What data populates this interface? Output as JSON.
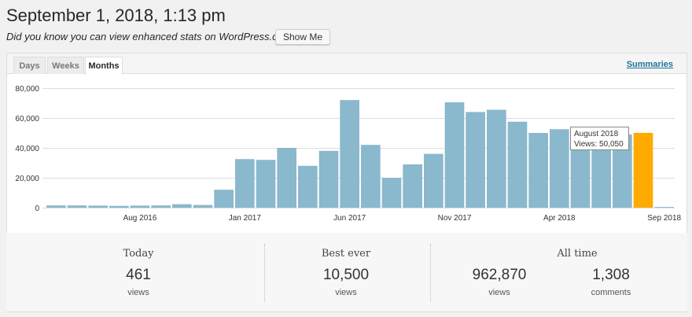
{
  "header": {
    "title": "September 1, 2018, 1:13 pm",
    "tip": "Did you know you can view enhanced stats on WordPress.com?",
    "show_me_label": "Show Me"
  },
  "tabs": [
    {
      "label": "Days",
      "active": false
    },
    {
      "label": "Weeks",
      "active": false
    },
    {
      "label": "Months",
      "active": true
    }
  ],
  "summaries_label": "Summaries",
  "tooltip": {
    "title": "August 2018",
    "text": "Views: 50,050"
  },
  "chart_data": {
    "type": "bar",
    "categories": [
      "Apr 2016",
      "May 2016",
      "Jun 2016",
      "Jul 2016",
      "Aug 2016",
      "Sep 2016",
      "Oct 2016",
      "Nov 2016",
      "Dec 2016",
      "Jan 2017",
      "Feb 2017",
      "Mar 2017",
      "Apr 2017",
      "May 2017",
      "Jun 2017",
      "Jul 2017",
      "Aug 2017",
      "Sep 2017",
      "Oct 2017",
      "Nov 2017",
      "Dec 2017",
      "Jan 2018",
      "Feb 2018",
      "Mar 2018",
      "Apr 2018",
      "May 2018",
      "Jun 2018",
      "Jul 2018",
      "Aug 2018",
      "Sep 2018"
    ],
    "values": [
      1500,
      1500,
      1400,
      1200,
      1400,
      1500,
      2300,
      1800,
      12000,
      32500,
      32000,
      40000,
      28000,
      38000,
      72000,
      42000,
      20000,
      29000,
      36000,
      70500,
      64000,
      65500,
      57500,
      50000,
      52500,
      40000,
      47000,
      49000,
      50050,
      500
    ],
    "highlight_index": 28,
    "x_tick_labels": [
      "Aug 2016",
      "Jan 2017",
      "Jun 2017",
      "Nov 2017",
      "Apr 2018",
      "Sep 2018"
    ],
    "x_tick_indices": [
      4,
      9,
      14,
      19,
      24,
      29
    ],
    "y_tick_labels": [
      "0",
      "20,000",
      "40,000",
      "60,000",
      "80,000"
    ],
    "y_tick_values": [
      0,
      20000,
      40000,
      60000,
      80000
    ],
    "ylim": [
      0,
      80000
    ],
    "grid": true,
    "colors": {
      "bar": "#8ab8cc",
      "highlight": "#ffaa00",
      "grid": "#dddddd"
    }
  },
  "stats": {
    "today": {
      "label": "Today",
      "value": "461",
      "unit": "views"
    },
    "best": {
      "label": "Best ever",
      "value": "10,500",
      "unit": "views"
    },
    "all_time": {
      "label": "All time",
      "views_value": "962,870",
      "views_unit": "views",
      "comments_value": "1,308",
      "comments_unit": "comments"
    }
  }
}
